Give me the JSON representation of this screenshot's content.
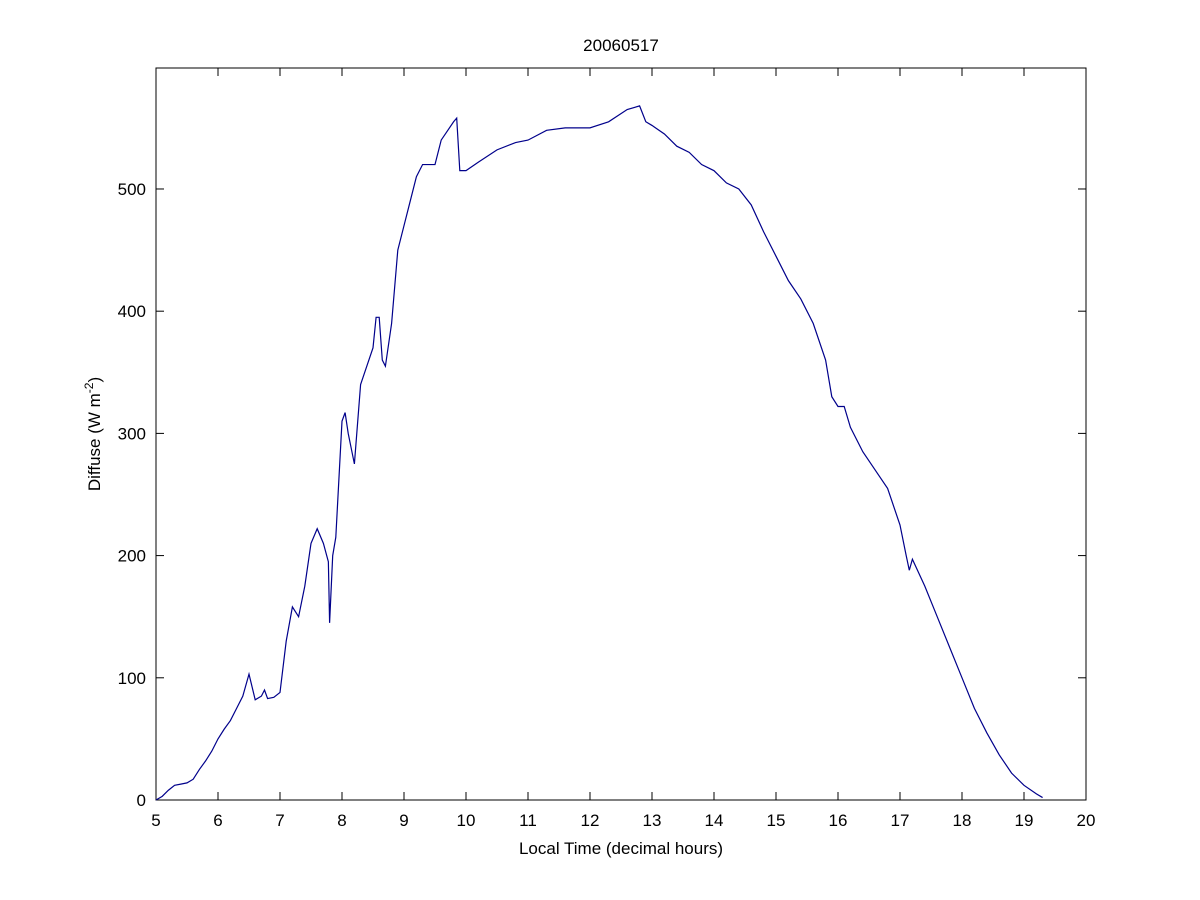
{
  "chart_data": {
    "type": "line",
    "title": "20060517",
    "x_label": "Local Time (decimal hours)",
    "y_label": {
      "text": "Diffuse (W m",
      "superscript": "-2",
      "suffix": ")"
    },
    "x": [
      5.0,
      5.1,
      5.2,
      5.3,
      5.4,
      5.5,
      5.6,
      5.7,
      5.8,
      5.9,
      6.0,
      6.1,
      6.2,
      6.3,
      6.4,
      6.5,
      6.6,
      6.7,
      6.75,
      6.8,
      6.9,
      7.0,
      7.1,
      7.2,
      7.3,
      7.4,
      7.5,
      7.6,
      7.7,
      7.78,
      7.8,
      7.85,
      7.9,
      8.0,
      8.05,
      8.1,
      8.2,
      8.3,
      8.4,
      8.5,
      8.55,
      8.6,
      8.65,
      8.7,
      8.8,
      8.9,
      9.0,
      9.1,
      9.2,
      9.3,
      9.5,
      9.6,
      9.8,
      9.85,
      9.9,
      10.0,
      10.2,
      10.5,
      10.8,
      11.0,
      11.3,
      11.6,
      12.0,
      12.3,
      12.6,
      12.8,
      12.9,
      13.0,
      13.2,
      13.4,
      13.6,
      13.8,
      14.0,
      14.2,
      14.4,
      14.6,
      14.8,
      15.0,
      15.2,
      15.4,
      15.6,
      15.8,
      15.9,
      16.0,
      16.1,
      16.2,
      16.4,
      16.6,
      16.8,
      17.0,
      17.1,
      17.15,
      17.2,
      17.4,
      17.6,
      17.8,
      18.0,
      18.2,
      18.4,
      18.6,
      18.8,
      19.0,
      19.2,
      19.3
    ],
    "values": [
      0,
      3,
      8,
      12,
      13,
      14,
      17,
      25,
      32,
      40,
      50,
      58,
      65,
      75,
      85,
      103,
      82,
      85,
      90,
      83,
      84,
      88,
      130,
      158,
      150,
      175,
      210,
      222,
      210,
      195,
      145,
      200,
      215,
      310,
      317,
      300,
      275,
      340,
      355,
      370,
      395,
      395,
      360,
      355,
      390,
      450,
      470,
      490,
      510,
      520,
      520,
      540,
      555,
      558,
      515,
      515,
      522,
      532,
      538,
      540,
      548,
      550,
      550,
      555,
      565,
      568,
      555,
      552,
      545,
      535,
      530,
      520,
      515,
      505,
      500,
      487,
      465,
      445,
      425,
      410,
      390,
      360,
      330,
      322,
      322,
      305,
      285,
      270,
      255,
      225,
      200,
      188,
      197,
      175,
      150,
      125,
      100,
      75,
      55,
      37,
      22,
      12,
      5,
      2
    ],
    "color": "#00008b",
    "xlim": [
      5,
      20
    ],
    "xticks": [
      5,
      6,
      7,
      8,
      9,
      10,
      11,
      12,
      13,
      14,
      15,
      16,
      17,
      18,
      19,
      20
    ],
    "ylim": [
      0,
      599
    ],
    "yticks": [
      0,
      100,
      200,
      300,
      400,
      500
    ],
    "grid": false
  }
}
